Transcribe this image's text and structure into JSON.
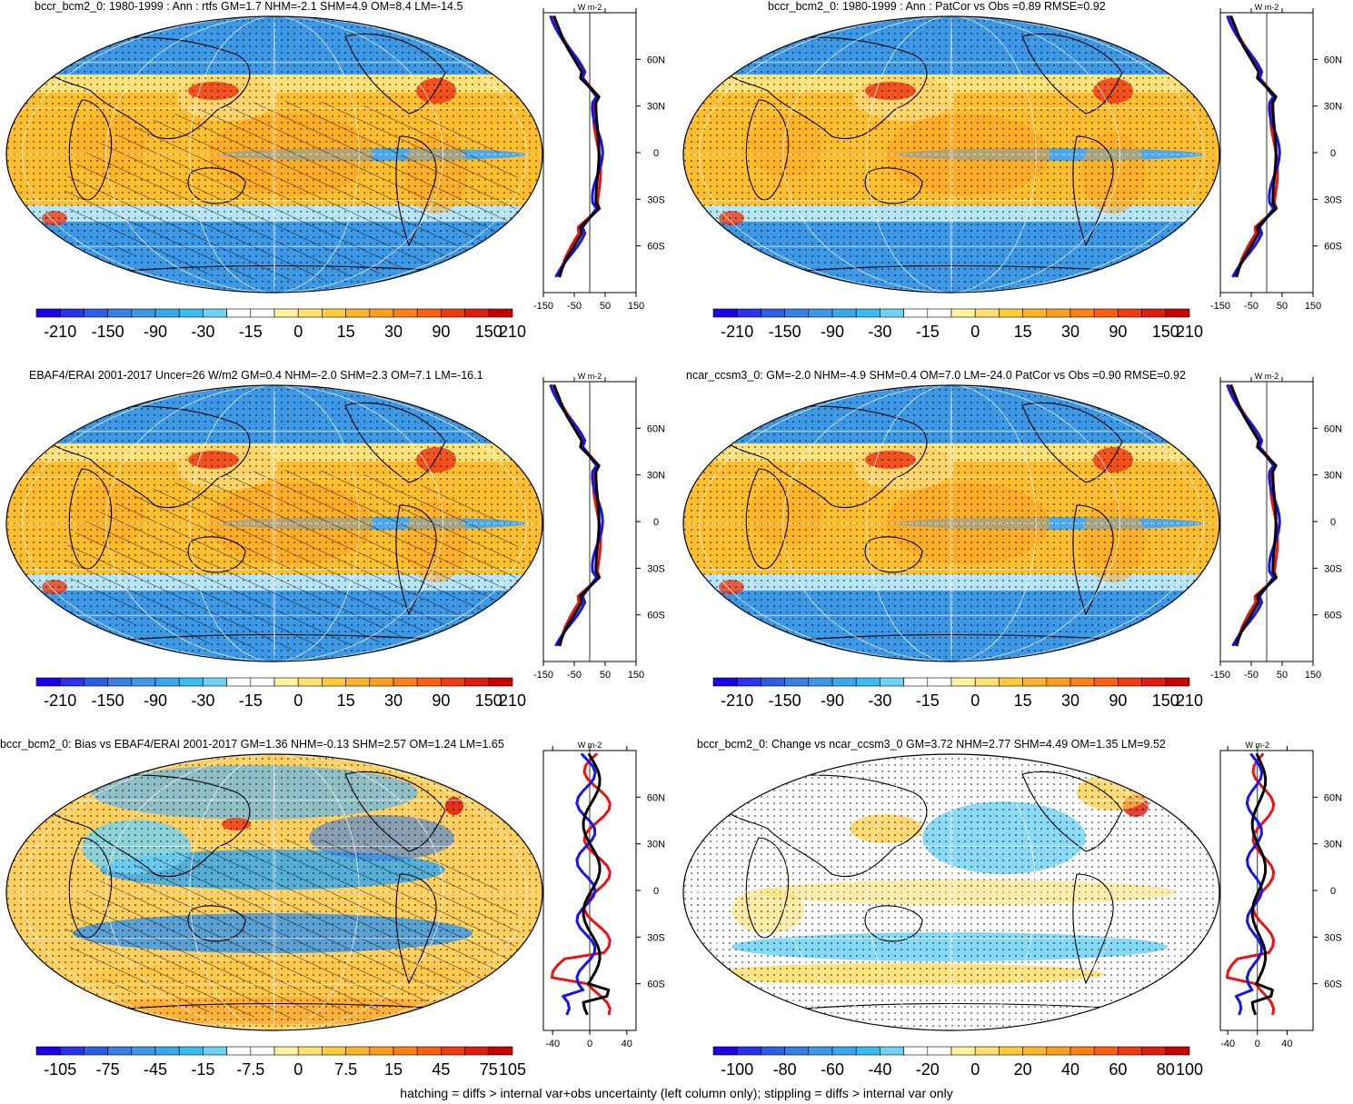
{
  "panels": [
    {
      "title": "bccr_bcm2_0: 1980-1999 : Ann : rtfs GM=1.7 NHM=-2.1 SHM=4.9 OM=8.4 LM=-14.5",
      "map_style": "clim",
      "hatch": true,
      "colorbar_labels": [
        "-210",
        "-150",
        "-90",
        "-30",
        "-15",
        "0",
        "15",
        "30",
        "90",
        "150",
        "210"
      ],
      "profile_xticks": [
        "-150",
        "-50",
        "50",
        "150"
      ],
      "profile_xlim": [
        -150,
        150
      ],
      "profile_lat_labels": [
        "60N",
        "30N",
        "0",
        "30S",
        "60S"
      ],
      "profile_unit": "W m-2"
    },
    {
      "title": "bccr_bcm2_0: 1980-1999 : Ann : PatCor vs Obs =0.89 RMSE=0.92",
      "map_style": "clim",
      "hatch": false,
      "colorbar_labels": [
        "-210",
        "-150",
        "-90",
        "-30",
        "-15",
        "0",
        "15",
        "30",
        "90",
        "150",
        "210"
      ],
      "profile_xticks": [
        "-150",
        "-50",
        "50",
        "150"
      ],
      "profile_xlim": [
        -150,
        150
      ],
      "profile_lat_labels": [
        "60N",
        "30N",
        "0",
        "30S",
        "60S"
      ],
      "profile_unit": "W m-2"
    },
    {
      "title": "EBAF4/ERAI 2001-2017 Uncer=26 W/m2 GM=0.4 NHM=-2.0 SHM=2.3 OM=7.1 LM=-16.1",
      "map_style": "clim",
      "hatch": true,
      "colorbar_labels": [
        "-210",
        "-150",
        "-90",
        "-30",
        "-15",
        "0",
        "15",
        "30",
        "90",
        "150",
        "210"
      ],
      "profile_xticks": [
        "-150",
        "-50",
        "50",
        "150"
      ],
      "profile_xlim": [
        -150,
        150
      ],
      "profile_lat_labels": [
        "60N",
        "30N",
        "0",
        "30S",
        "60S"
      ],
      "profile_unit": "W m-2"
    },
    {
      "title": "ncar_ccsm3_0: GM=-2.0 NHM=-4.9 SHM=0.4 OM=7.0 LM=-24.0 PatCor vs Obs =0.90 RMSE=0.92",
      "map_style": "clim",
      "hatch": false,
      "colorbar_labels": [
        "-210",
        "-150",
        "-90",
        "-30",
        "-15",
        "0",
        "15",
        "30",
        "90",
        "150",
        "210"
      ],
      "profile_xticks": [
        "-150",
        "-50",
        "50",
        "150"
      ],
      "profile_xlim": [
        -150,
        150
      ],
      "profile_lat_labels": [
        "60N",
        "30N",
        "0",
        "30S",
        "60S"
      ],
      "profile_unit": "W m-2"
    },
    {
      "title": "bccr_bcm2_0: Bias vs EBAF4/ERAI 2001-2017 GM=1.36 NHM=-0.13 SHM=2.57 OM=1.24 LM=1.65",
      "map_style": "bias",
      "hatch": true,
      "colorbar_labels": [
        "-105",
        "-75",
        "-45",
        "-15",
        "-7.5",
        "0",
        "7.5",
        "15",
        "45",
        "75",
        "105"
      ],
      "profile_xticks": [
        "-40",
        "0",
        "40"
      ],
      "profile_xlim": [
        -50,
        50
      ],
      "profile_lat_labels": [
        "60N",
        "30N",
        "0",
        "30S",
        "60S"
      ],
      "profile_unit": "W m-2"
    },
    {
      "title": "bccr_bcm2_0: Change vs ncar_ccsm3_0 GM=3.72 NHM=2.77 SHM=4.49 OM=1.35 LM=9.52",
      "map_style": "change",
      "hatch": false,
      "colorbar_labels": [
        "-100",
        "-80",
        "-60",
        "-40",
        "-20",
        "0",
        "20",
        "40",
        "60",
        "80",
        "100"
      ],
      "profile_xticks": [
        "-40",
        "0",
        "40"
      ],
      "profile_xlim": [
        -50,
        75
      ],
      "profile_lat_labels": [
        "60N",
        "30N",
        "0",
        "30S",
        "60S"
      ],
      "profile_unit": "W m-2"
    }
  ],
  "colors": {
    "scale": [
      "#1c00e8",
      "#2a32ee",
      "#2f5ee6",
      "#3a7fe4",
      "#3d98e6",
      "#3aa8ec",
      "#38bdf2",
      "#6fd2f4",
      "#ffffff",
      "#ffffff",
      "#fff3a0",
      "#ffe070",
      "#ffcb3a",
      "#ffb52a",
      "#ff9d1e",
      "#ff8014",
      "#ff5f10",
      "#f03b10",
      "#e01e10",
      "#c80000"
    ],
    "profile_red": "#ee1111",
    "profile_blue": "#1515ee",
    "profile_black": "#000000"
  },
  "footer": "hatching = diffs > internal var+obs uncertainty (left column only); stippling = diffs > internal var only"
}
